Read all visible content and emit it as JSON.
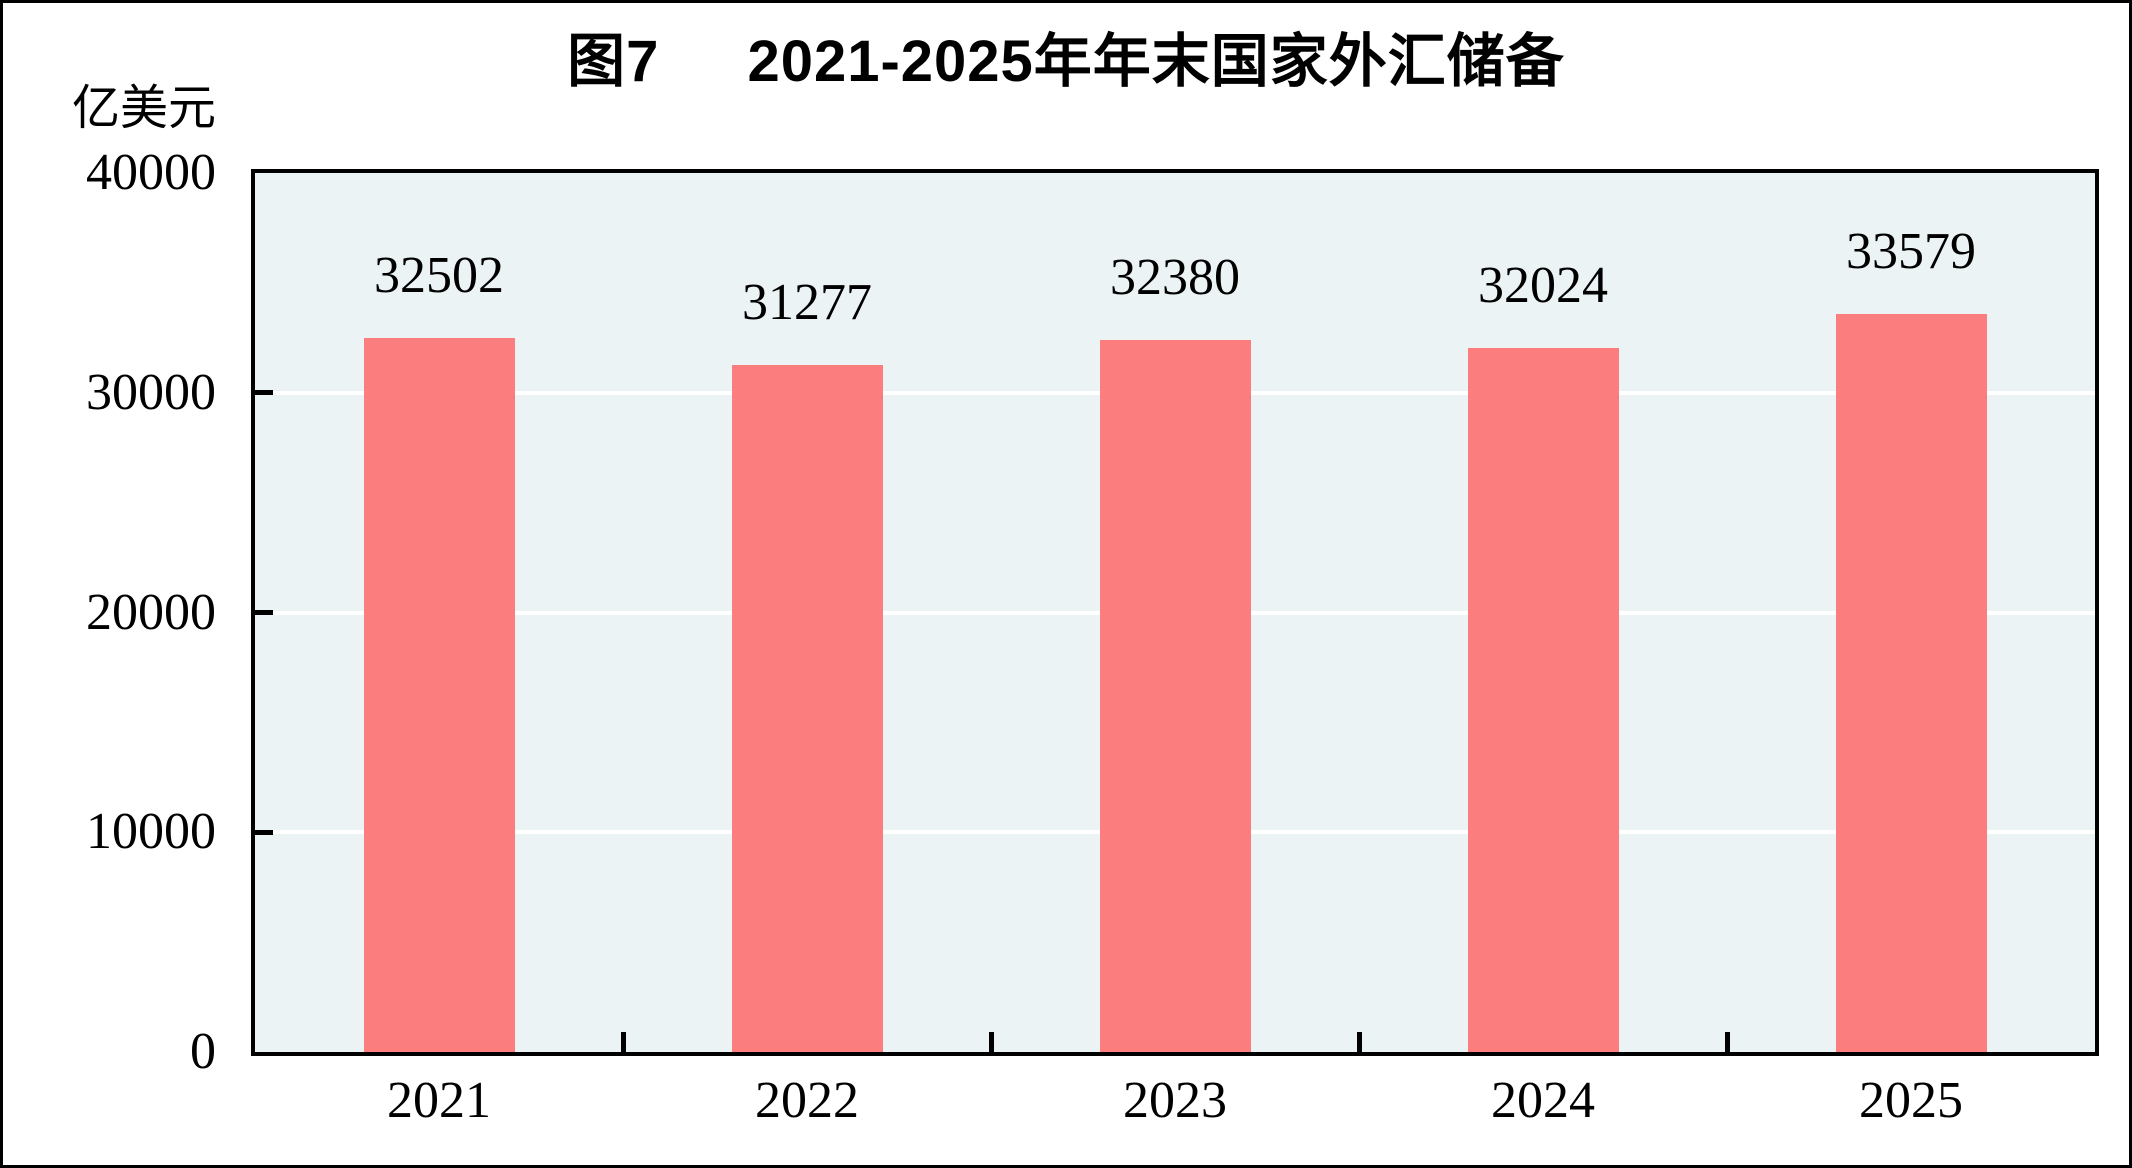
{
  "window": {
    "background": "#ffffff",
    "frame_border_color": "#000000"
  },
  "chart_data": {
    "type": "bar",
    "title_prefix": "图7",
    "title_text": "2021-2025年年末国家外汇储备",
    "title_full": "图7　2021-2025年年末国家外汇储备",
    "unit_label": "亿美元",
    "categories": [
      "2021",
      "2022",
      "2023",
      "2024",
      "2025"
    ],
    "values": [
      32502,
      31277,
      32380,
      32024,
      33579
    ],
    "value_labels": [
      "32502",
      "31277",
      "32380",
      "32024",
      "33579"
    ],
    "ylim": [
      0,
      40000
    ],
    "yticks": [
      0,
      10000,
      20000,
      30000,
      40000
    ],
    "ytick_labels": [
      "0",
      "10000",
      "20000",
      "30000",
      "40000"
    ],
    "grid": "horizontal",
    "legend_position": "none",
    "bar_color": "#FB7D7D",
    "plot_background": "#ECF3F5",
    "gridline_color": "#FFFFFF",
    "axis_color": "#000000",
    "text_color": "#000000"
  }
}
